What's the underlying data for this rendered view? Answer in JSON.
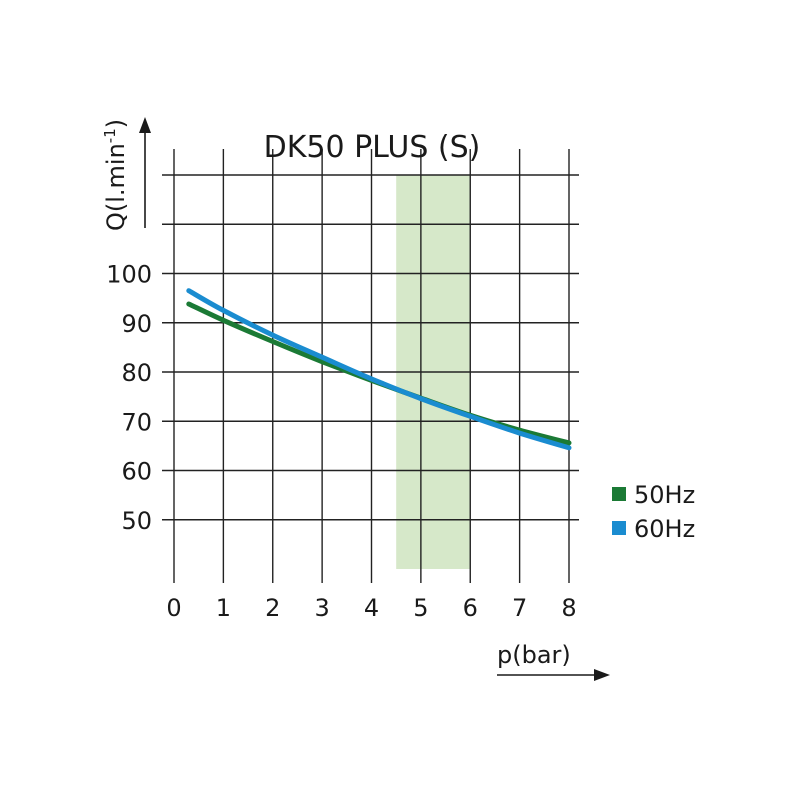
{
  "chart_data": {
    "type": "line",
    "title": "DK50 PLUS (S)",
    "xlabel": "p(bar)",
    "ylabel": "Q(l.min",
    "ylabel_superscript": "-1",
    "ylabel_close": ")",
    "xlim": [
      0,
      8
    ],
    "ylim": [
      40,
      120
    ],
    "x_ticks": [
      "0",
      "1",
      "2",
      "3",
      "4",
      "5",
      "6",
      "7",
      "8"
    ],
    "y_ticks": [
      "50",
      "60",
      "70",
      "80",
      "90",
      "100"
    ],
    "grid": true,
    "highlight_band": {
      "x_from": 4.5,
      "x_to": 6.0,
      "color": "#d6e8c9"
    },
    "legend_position": "right",
    "series": [
      {
        "name": "50Hz",
        "color": "#1b7a35",
        "x": [
          0.3,
          1,
          2,
          3,
          4,
          5,
          6,
          7,
          8
        ],
        "values": [
          93.8,
          90.5,
          86.2,
          82.1,
          78.3,
          74.7,
          71.2,
          68.2,
          65.6
        ]
      },
      {
        "name": "60Hz",
        "color": "#1a8cd0",
        "x": [
          0.3,
          1,
          2,
          3,
          4,
          5,
          6,
          7,
          8
        ],
        "values": [
          96.5,
          92.5,
          87.5,
          83.0,
          78.6,
          74.6,
          71.0,
          67.6,
          64.6
        ]
      }
    ]
  }
}
